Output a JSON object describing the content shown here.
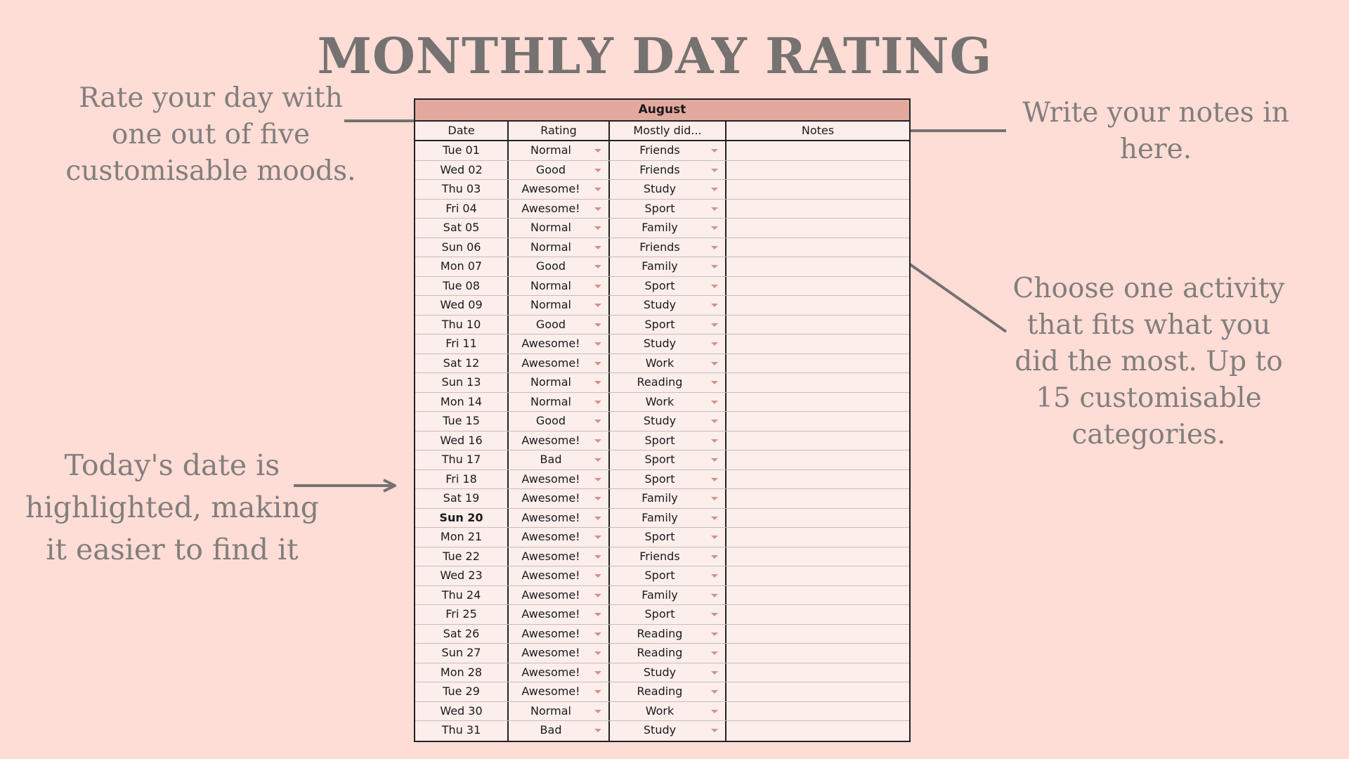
{
  "title": "MONTHLY DAY RATING",
  "annotations": {
    "rate": "Rate your day with one out of five customisable moods.",
    "notes": "Write your notes in here.",
    "activity": "Choose one activity that fits what you did the most. Up to 15 customisable categories.",
    "today": "Today's date is highlighted, making it easier to find it"
  },
  "sheet": {
    "month": "August",
    "headers": {
      "date": "Date",
      "rating": "Rating",
      "activity": "Mostly did...",
      "notes": "Notes"
    },
    "today": "Sun 20",
    "rows": [
      {
        "date": "Tue 01",
        "rating": "Normal",
        "activity": "Friends",
        "notes": ""
      },
      {
        "date": "Wed 02",
        "rating": "Good",
        "activity": "Friends",
        "notes": ""
      },
      {
        "date": "Thu 03",
        "rating": "Awesome!",
        "activity": "Study",
        "notes": ""
      },
      {
        "date": "Fri 04",
        "rating": "Awesome!",
        "activity": "Sport",
        "notes": ""
      },
      {
        "date": "Sat 05",
        "rating": "Normal",
        "activity": "Family",
        "notes": ""
      },
      {
        "date": "Sun 06",
        "rating": "Normal",
        "activity": "Friends",
        "notes": ""
      },
      {
        "date": "Mon 07",
        "rating": "Good",
        "activity": "Family",
        "notes": ""
      },
      {
        "date": "Tue 08",
        "rating": "Normal",
        "activity": "Sport",
        "notes": ""
      },
      {
        "date": "Wed 09",
        "rating": "Normal",
        "activity": "Study",
        "notes": ""
      },
      {
        "date": "Thu 10",
        "rating": "Good",
        "activity": "Sport",
        "notes": ""
      },
      {
        "date": "Fri 11",
        "rating": "Awesome!",
        "activity": "Study",
        "notes": ""
      },
      {
        "date": "Sat 12",
        "rating": "Awesome!",
        "activity": "Work",
        "notes": ""
      },
      {
        "date": "Sun 13",
        "rating": "Normal",
        "activity": "Reading",
        "notes": ""
      },
      {
        "date": "Mon 14",
        "rating": "Normal",
        "activity": "Work",
        "notes": ""
      },
      {
        "date": "Tue 15",
        "rating": "Good",
        "activity": "Study",
        "notes": ""
      },
      {
        "date": "Wed 16",
        "rating": "Awesome!",
        "activity": "Sport",
        "notes": ""
      },
      {
        "date": "Thu 17",
        "rating": "Bad",
        "activity": "Sport",
        "notes": ""
      },
      {
        "date": "Fri 18",
        "rating": "Awesome!",
        "activity": "Sport",
        "notes": ""
      },
      {
        "date": "Sat 19",
        "rating": "Awesome!",
        "activity": "Family",
        "notes": ""
      },
      {
        "date": "Sun 20",
        "rating": "Awesome!",
        "activity": "Family",
        "notes": ""
      },
      {
        "date": "Mon 21",
        "rating": "Awesome!",
        "activity": "Sport",
        "notes": ""
      },
      {
        "date": "Tue 22",
        "rating": "Awesome!",
        "activity": "Friends",
        "notes": ""
      },
      {
        "date": "Wed 23",
        "rating": "Awesome!",
        "activity": "Sport",
        "notes": ""
      },
      {
        "date": "Thu 24",
        "rating": "Awesome!",
        "activity": "Family",
        "notes": ""
      },
      {
        "date": "Fri 25",
        "rating": "Awesome!",
        "activity": "Sport",
        "notes": ""
      },
      {
        "date": "Sat 26",
        "rating": "Awesome!",
        "activity": "Reading",
        "notes": ""
      },
      {
        "date": "Sun 27",
        "rating": "Awesome!",
        "activity": "Reading",
        "notes": ""
      },
      {
        "date": "Mon 28",
        "rating": "Awesome!",
        "activity": "Study",
        "notes": ""
      },
      {
        "date": "Tue 29",
        "rating": "Awesome!",
        "activity": "Reading",
        "notes": ""
      },
      {
        "date": "Wed 30",
        "rating": "Normal",
        "activity": "Work",
        "notes": ""
      },
      {
        "date": "Thu 31",
        "rating": "Bad",
        "activity": "Study",
        "notes": ""
      }
    ]
  },
  "colors": {
    "background": "#fdddd6",
    "month_bar": "#e3a99e",
    "sheet_fill": "#fbeeeb",
    "text_gray": "#767271",
    "caret": "#d98f84",
    "arrow": "#767271"
  },
  "icons": {
    "dropdown": "chevron-down-icon",
    "pointer": "arrow-icon"
  }
}
